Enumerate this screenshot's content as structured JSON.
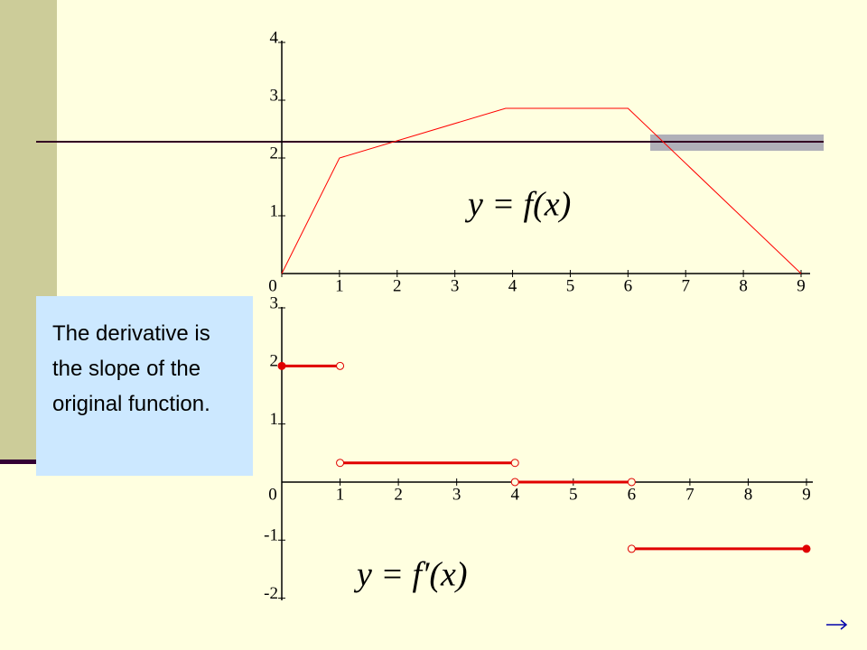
{
  "slide": {
    "textbox": "The derivative is the slope of the original function."
  },
  "chart_data": [
    {
      "type": "line",
      "annotation": "y = f(x)",
      "x": [
        0,
        1,
        3.88,
        6,
        9
      ],
      "series": [
        {
          "color": "#ff0000",
          "values": [
            0,
            2,
            2.86,
            2.86,
            0
          ]
        }
      ],
      "xlim": [
        0,
        9
      ],
      "ylim": [
        0,
        4
      ],
      "xticks": [
        0,
        1,
        2,
        3,
        4,
        5,
        6,
        7,
        8,
        9
      ],
      "yticks": [
        1,
        2,
        3,
        4
      ]
    },
    {
      "type": "segments",
      "annotation": "y = f′(x)",
      "series": [
        {
          "color": "#e00000",
          "x": [
            0,
            1
          ],
          "values": [
            2,
            2
          ],
          "markers": [
            "filled",
            "open"
          ]
        },
        {
          "color": "#e00000",
          "x": [
            1,
            4
          ],
          "values": [
            0.33,
            0.33
          ],
          "markers": [
            "open",
            "open"
          ]
        },
        {
          "color": "#e00000",
          "x": [
            4,
            6
          ],
          "values": [
            0,
            0
          ],
          "markers": [
            "open",
            "open"
          ]
        },
        {
          "color": "#e00000",
          "x": [
            6,
            9
          ],
          "values": [
            -1.15,
            -1.15
          ],
          "markers": [
            "open",
            "filled"
          ]
        }
      ],
      "xlim": [
        0,
        9
      ],
      "ylim": [
        -2,
        3
      ],
      "xticks": [
        0,
        1,
        2,
        3,
        4,
        5,
        6,
        7,
        8,
        9
      ],
      "yticks": [
        -2,
        -1,
        1,
        2,
        3
      ]
    }
  ]
}
